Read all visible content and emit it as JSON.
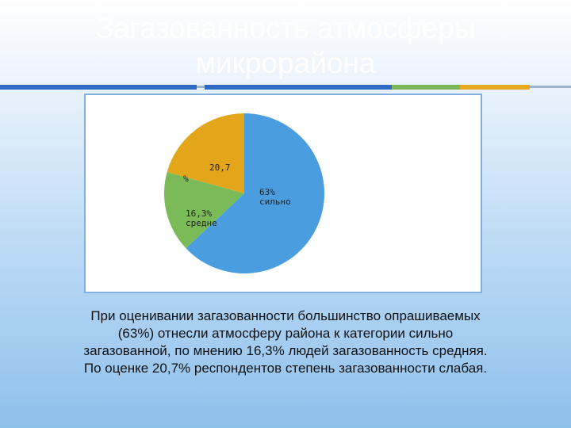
{
  "slide": {
    "title_line1": "Загазованность атмосферы",
    "title_line2": "микрорайона",
    "accent_colors": [
      "#2f6bc4",
      "#2f6bc4",
      "#7cb85a",
      "#e8a820",
      "#5e7fa8"
    ],
    "caption_line1": "При оценивании загазованности большинство опрашиваемых",
    "caption_line2": "(63%) отнесли атмосферу района  к категории сильно",
    "caption_line3": "загазованной, по мнению 16,3% людей загазованность средняя.",
    "caption_line4": "По оценке 20,7% респондентов степень загазованности слабая."
  },
  "chart_data": {
    "type": "pie",
    "title": "",
    "slices": [
      {
        "value": 63,
        "color": "#4a9ee0",
        "label_line1": "63%",
        "label_line2": "сильно"
      },
      {
        "value": 16.3,
        "color": "#7abb58",
        "label_line1": "16,3%",
        "label_line2": "средне"
      },
      {
        "value": 20.7,
        "color": "#e3a61a",
        "label_line1": "20,7",
        "label_line2": "%"
      }
    ],
    "legend": "none"
  }
}
